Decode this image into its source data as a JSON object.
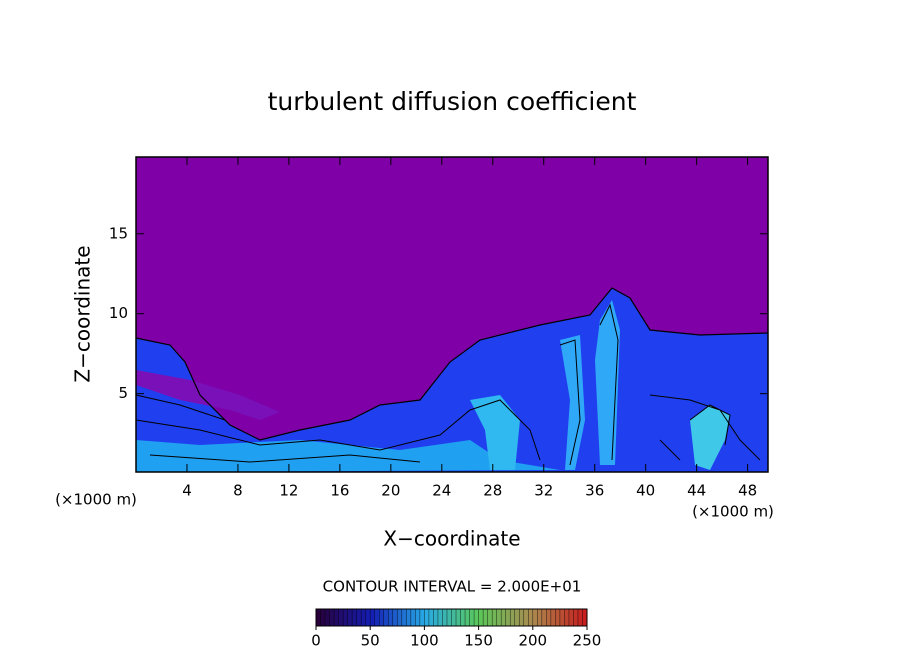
{
  "chart_data": {
    "type": "contour",
    "title": "turbulent diffusion coefficient",
    "xlabel": "X−coordinate",
    "ylabel": "Z−coordinate",
    "x_unit_left": "(×1000 m)",
    "x_unit_right": "(×1000 m)",
    "xlim": [
      0,
      49.6
    ],
    "xticks": [
      4,
      8,
      12,
      16,
      20,
      24,
      28,
      32,
      36,
      40,
      44,
      48
    ],
    "ylim": [
      0.1,
      19.8
    ],
    "yticks": [
      5,
      10,
      15
    ],
    "contour_interval": "CONTOUR INTERVAL = 2.000E+01",
    "colorbar_lim": [
      0,
      250
    ],
    "colorbar_ticks": [
      0,
      50,
      100,
      150,
      200,
      250
    ]
  }
}
